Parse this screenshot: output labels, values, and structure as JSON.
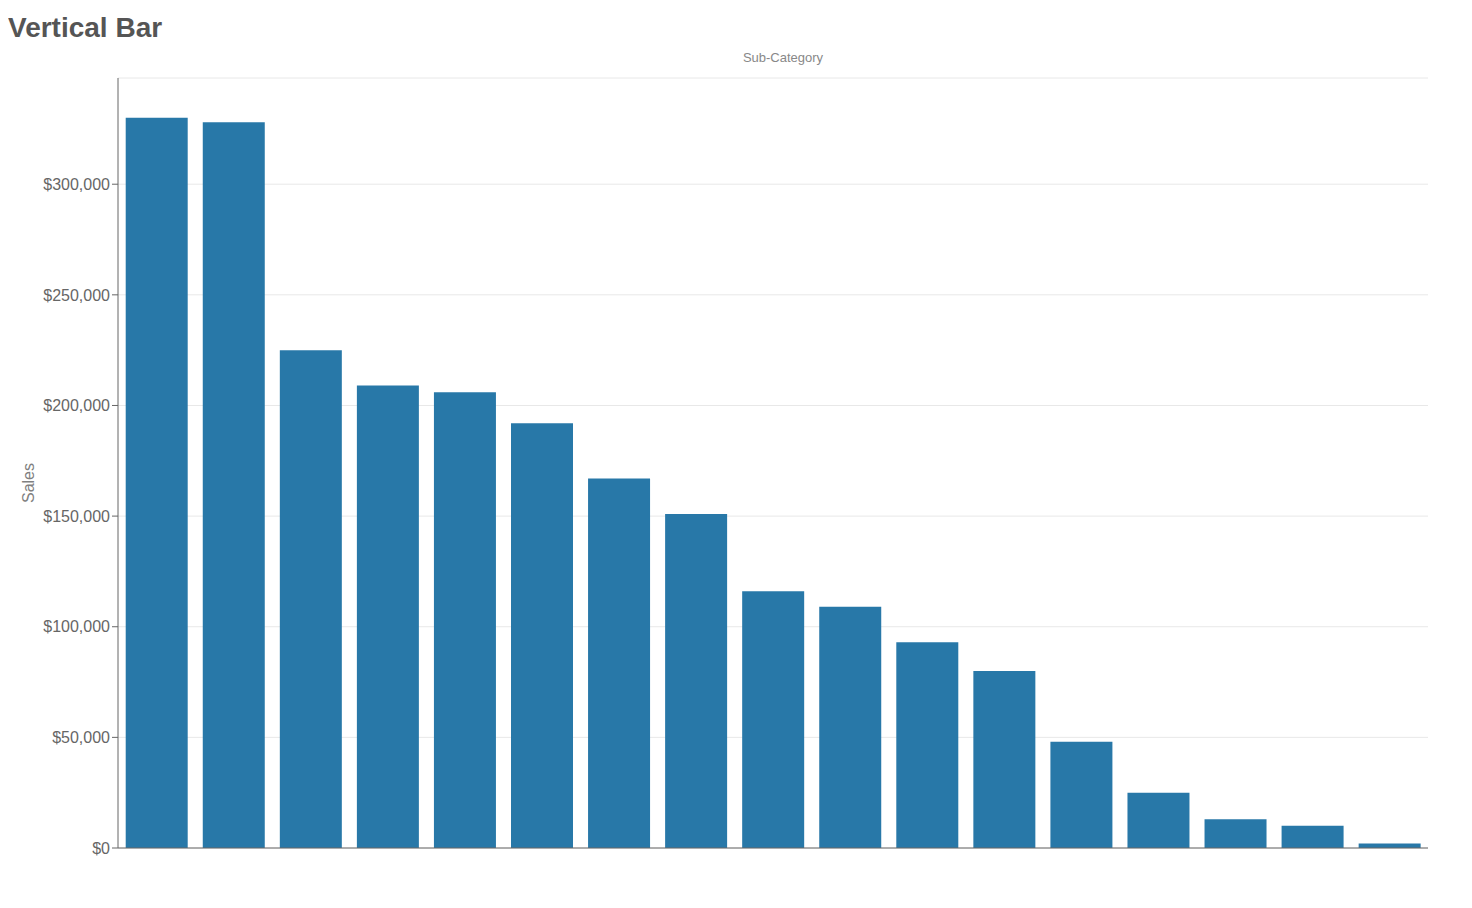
{
  "chart_data": {
    "type": "bar",
    "title": "Vertical Bar",
    "x_label": "Sub-Category",
    "y_label": "Sales",
    "categories": [
      null,
      null,
      null,
      null,
      null,
      null,
      null,
      null,
      null,
      null,
      null,
      null,
      null,
      null,
      null,
      null,
      null
    ],
    "values": [
      330000,
      328000,
      225000,
      209000,
      206000,
      192000,
      167000,
      151000,
      116000,
      109000,
      93000,
      80000,
      48000,
      25000,
      13000,
      10000,
      2000
    ],
    "color": "#2878a8",
    "ylim": [
      0,
      348000
    ],
    "yticks": [
      {
        "value": 0,
        "label": "$0"
      },
      {
        "value": 50000,
        "label": "$50,000"
      },
      {
        "value": 100000,
        "label": "$100,000"
      },
      {
        "value": 150000,
        "label": "$150,000"
      },
      {
        "value": 200000,
        "label": "$200,000"
      },
      {
        "value": 250000,
        "label": "$250,000"
      },
      {
        "value": 300000,
        "label": "$300,000"
      }
    ],
    "grid": true,
    "tick_labels": "y"
  }
}
